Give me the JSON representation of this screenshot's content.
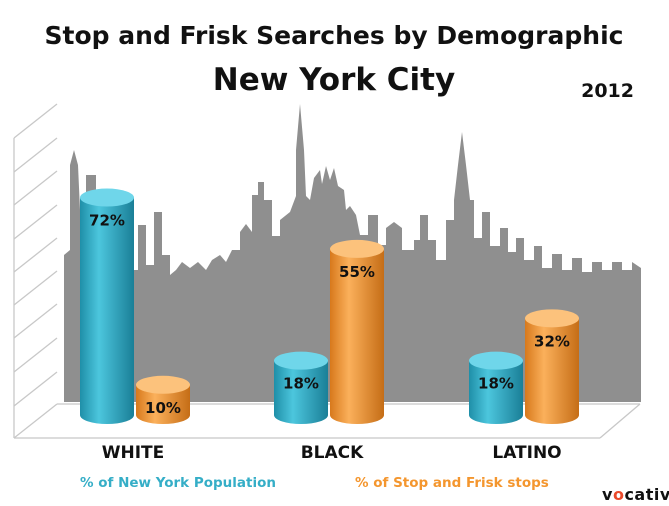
{
  "chart_data": {
    "type": "bar",
    "title": "Stop and Frisk Searches by Demographic",
    "subtitle": "New York City",
    "year": "2012",
    "categories": [
      "WHITE",
      "BLACK",
      "LATINO"
    ],
    "series": [
      {
        "name": "% of New York Population",
        "values": [
          72,
          18,
          18
        ],
        "labels": [
          "72%",
          "18%",
          "18%"
        ],
        "color": "#35aec7"
      },
      {
        "name": "% of Stop and Frisk stops",
        "values": [
          10,
          55,
          32
        ],
        "labels": [
          "10%",
          "55%",
          "32%"
        ],
        "color": "#f4962e"
      }
    ],
    "ylim": [
      0,
      100
    ],
    "grid": true,
    "legend_position": "bottom"
  },
  "brand": {
    "name": "vocativ"
  },
  "colors": {
    "skyline": "#8f8f8f",
    "title": "#111111",
    "grid": "#c8c8c8"
  }
}
